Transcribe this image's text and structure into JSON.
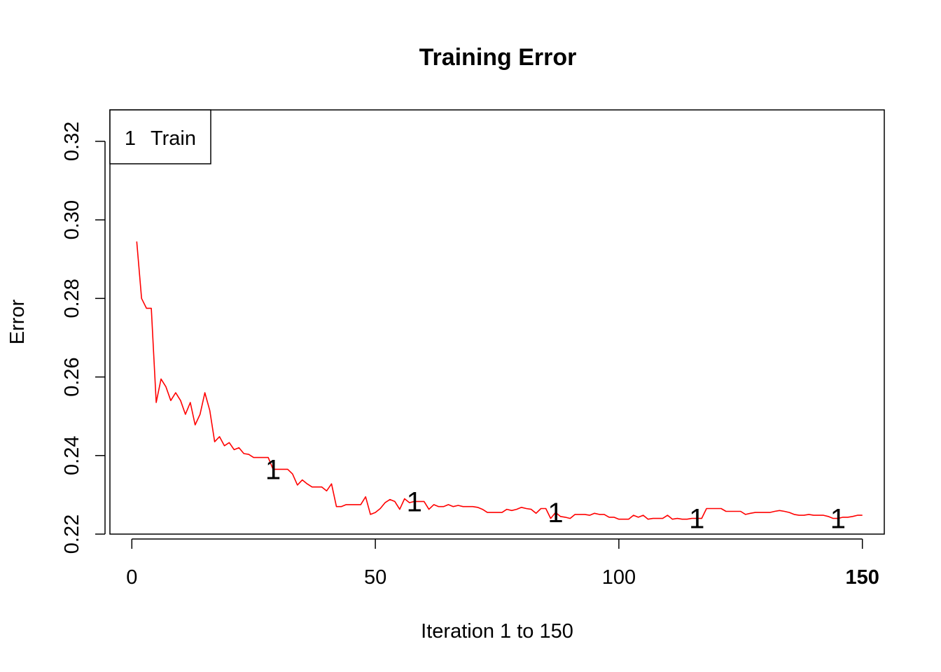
{
  "chart_data": {
    "type": "line",
    "title": "Training Error",
    "xlabel": "Iteration 1 to 150",
    "ylabel": "Error",
    "xlim": [
      -4.5,
      154.5
    ],
    "ylim": [
      0.22,
      0.328
    ],
    "x_ticks": [
      0,
      50,
      100,
      150
    ],
    "x_tick_labels": [
      "0",
      "50",
      "100",
      "150"
    ],
    "x_tick_bold": [
      false,
      false,
      false,
      true
    ],
    "y_ticks": [
      0.22,
      0.24,
      0.26,
      0.28,
      0.3,
      0.32
    ],
    "y_tick_labels": [
      "0.22",
      "0.24",
      "0.26",
      "0.28",
      "0.30",
      "0.32"
    ],
    "grid": false,
    "legend": {
      "placement": "top-left",
      "entries": [
        {
          "symbol": "1",
          "label": "Train"
        }
      ]
    },
    "series": [
      {
        "name": "Train",
        "color": "#ff0000",
        "marker": "1",
        "marker_x": [
          29,
          58,
          87,
          116,
          145
        ],
        "x": [
          1,
          2,
          3,
          4,
          5,
          6,
          7,
          8,
          9,
          10,
          11,
          12,
          13,
          14,
          15,
          16,
          17,
          18,
          19,
          20,
          21,
          22,
          23,
          24,
          25,
          26,
          27,
          28,
          29,
          30,
          31,
          32,
          33,
          34,
          35,
          36,
          37,
          38,
          39,
          40,
          41,
          42,
          43,
          44,
          45,
          46,
          47,
          48,
          49,
          50,
          51,
          52,
          53,
          54,
          55,
          56,
          57,
          58,
          59,
          60,
          61,
          62,
          63,
          64,
          65,
          66,
          67,
          68,
          69,
          70,
          71,
          72,
          73,
          74,
          75,
          76,
          77,
          78,
          79,
          80,
          81,
          82,
          83,
          84,
          85,
          86,
          87,
          88,
          89,
          90,
          91,
          92,
          93,
          94,
          95,
          96,
          97,
          98,
          99,
          100,
          101,
          102,
          103,
          104,
          105,
          106,
          107,
          108,
          109,
          110,
          111,
          112,
          113,
          114,
          115,
          116,
          117,
          118,
          119,
          120,
          121,
          122,
          123,
          124,
          125,
          126,
          127,
          128,
          129,
          130,
          131,
          132,
          133,
          134,
          135,
          136,
          137,
          138,
          139,
          140,
          141,
          142,
          143,
          144,
          145,
          146,
          147,
          148,
          149,
          150
        ],
        "values": [
          0.2945,
          0.28,
          0.2775,
          0.2775,
          0.2535,
          0.2595,
          0.2575,
          0.254,
          0.256,
          0.254,
          0.2505,
          0.2535,
          0.2478,
          0.2505,
          0.256,
          0.2515,
          0.2435,
          0.2448,
          0.2425,
          0.2433,
          0.2415,
          0.242,
          0.2405,
          0.2403,
          0.2395,
          0.2395,
          0.2395,
          0.2395,
          0.2365,
          0.2365,
          0.2365,
          0.2365,
          0.2353,
          0.2325,
          0.2338,
          0.2328,
          0.232,
          0.232,
          0.232,
          0.231,
          0.2328,
          0.227,
          0.227,
          0.2275,
          0.2275,
          0.2275,
          0.2275,
          0.2295,
          0.225,
          0.2255,
          0.2265,
          0.228,
          0.2288,
          0.2283,
          0.2263,
          0.229,
          0.228,
          0.2283,
          0.2283,
          0.2283,
          0.2263,
          0.2275,
          0.227,
          0.227,
          0.2275,
          0.227,
          0.2273,
          0.227,
          0.227,
          0.227,
          0.2268,
          0.2263,
          0.2255,
          0.2255,
          0.2255,
          0.2255,
          0.2263,
          0.226,
          0.2263,
          0.2268,
          0.2265,
          0.2263,
          0.2253,
          0.2265,
          0.2265,
          0.224,
          0.2255,
          0.2245,
          0.2243,
          0.224,
          0.225,
          0.225,
          0.225,
          0.2248,
          0.2253,
          0.225,
          0.225,
          0.2243,
          0.2243,
          0.2238,
          0.2238,
          0.2238,
          0.2248,
          0.2243,
          0.2248,
          0.2238,
          0.224,
          0.224,
          0.224,
          0.2248,
          0.2238,
          0.224,
          0.2238,
          0.2238,
          0.224,
          0.224,
          0.224,
          0.2265,
          0.2265,
          0.2265,
          0.2265,
          0.2258,
          0.2258,
          0.2258,
          0.2258,
          0.225,
          0.2253,
          0.2255,
          0.2255,
          0.2255,
          0.2255,
          0.2258,
          0.226,
          0.2258,
          0.2255,
          0.225,
          0.2248,
          0.2248,
          0.225,
          0.2248,
          0.2248,
          0.2248,
          0.2245,
          0.224,
          0.224,
          0.2243,
          0.2243,
          0.2245,
          0.2248,
          0.2248
        ]
      }
    ]
  }
}
